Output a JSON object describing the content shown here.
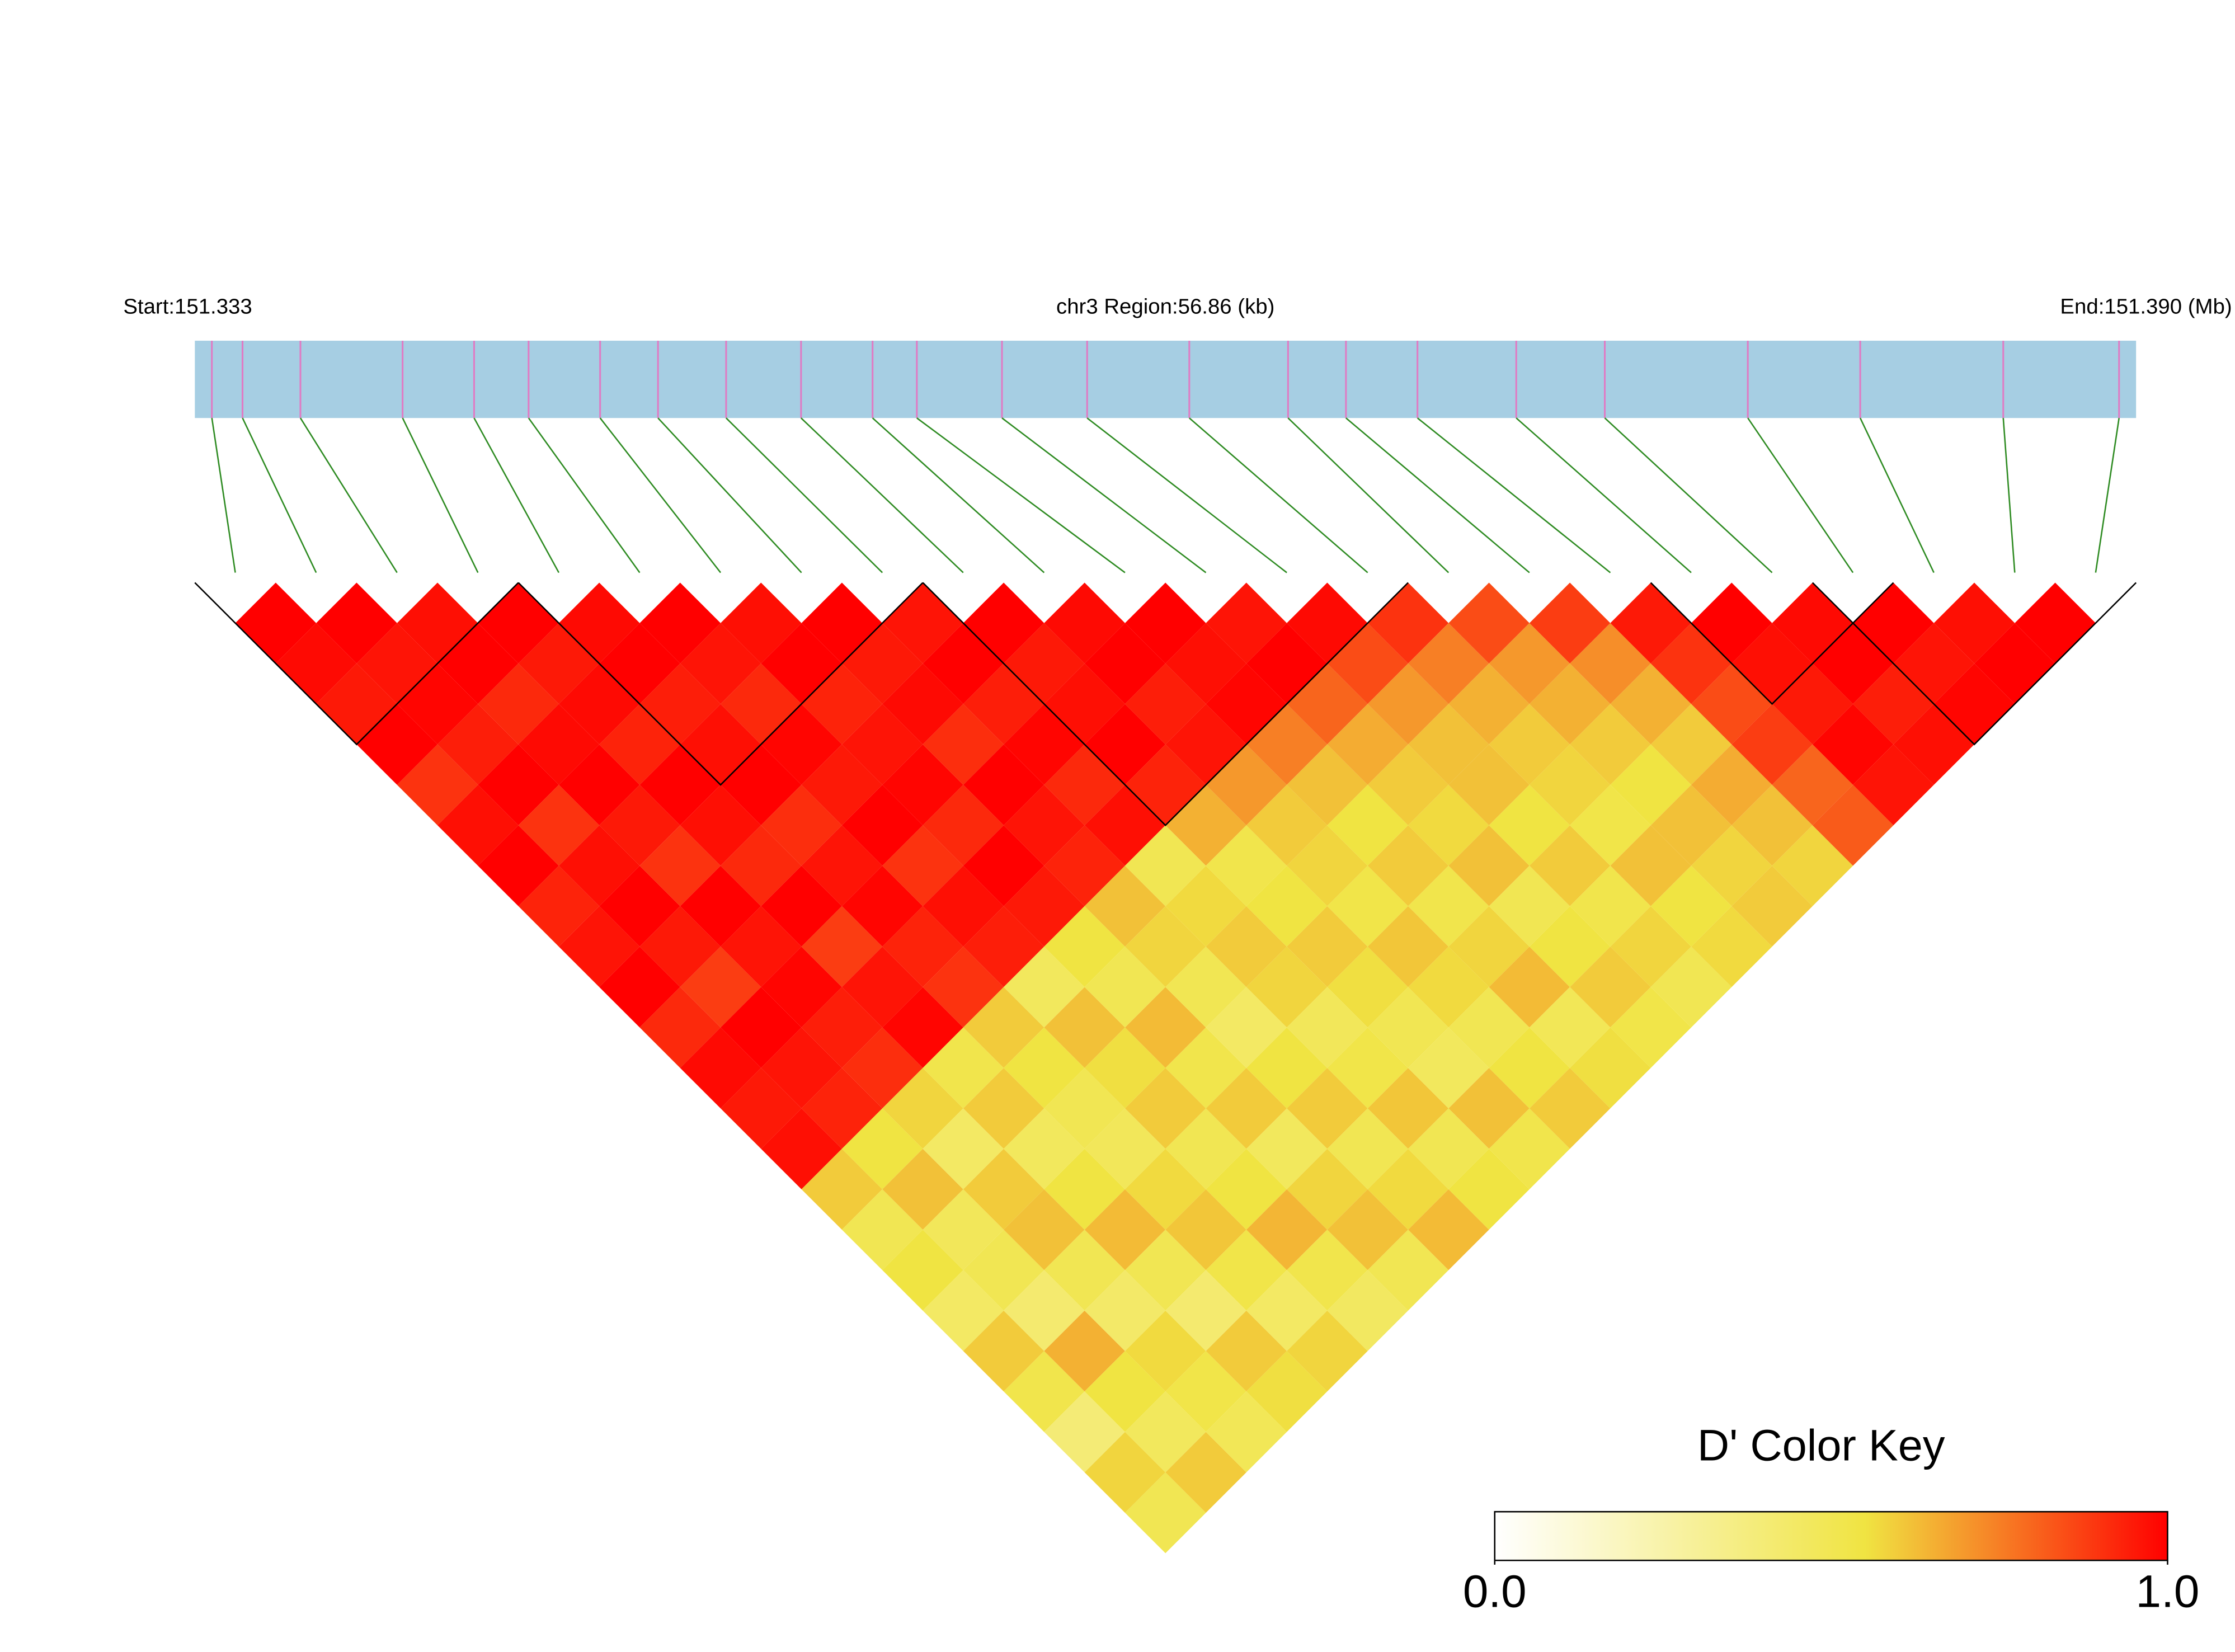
{
  "chart_data": {
    "type": "ld-heatmap",
    "start_label": "Start:151.333",
    "region_label": "chr3 Region:56.86 (kb)",
    "end_label": "End:151.390 (Mb)",
    "xlim": [
      151.333,
      151.39
    ],
    "positions": [
      151.3335,
      151.3344,
      151.3361,
      151.3391,
      151.3412,
      151.3428,
      151.3449,
      151.3466,
      151.3486,
      151.3508,
      151.3529,
      151.3542,
      151.3567,
      151.3592,
      151.3622,
      151.3651,
      151.3668,
      151.3689,
      151.3718,
      151.3744,
      151.3786,
      151.3819,
      151.3861,
      151.3895
    ],
    "matrix": [
      [
        1,
        0.98,
        0.95,
        1,
        0.9,
        0.97,
        1,
        0.93,
        0.96,
        1,
        0.92,
        0.98,
        0.95,
        0.97,
        0.6,
        0.5,
        0.55,
        0.45,
        0.6,
        0.52,
        0.4,
        0.58,
        0.5
      ],
      [
        1,
        0.96,
        0.99,
        0.94,
        1,
        0.9,
        0.97,
        1,
        0.95,
        0.88,
        1,
        0.96,
        0.93,
        0.55,
        0.62,
        0.48,
        0.5,
        0.42,
        0.65,
        0.55,
        0.47,
        0.6
      ],
      [
        0.97,
        1,
        0.92,
        0.98,
        1,
        0.95,
        0.9,
        1,
        0.96,
        0.99,
        0.94,
        0.91,
        0.58,
        0.45,
        0.6,
        0.62,
        0.5,
        0.44,
        0.57,
        0.53,
        0.49
      ],
      [
        1,
        0.95,
        0.98,
        0.93,
        1,
        0.97,
        0.92,
        1,
        0.88,
        0.96,
        0.99,
        0.52,
        0.6,
        0.47,
        0.55,
        0.63,
        0.5,
        0.42,
        0.6,
        0.56
      ],
      [
        0.98,
        1,
        0.94,
        0.97,
        1,
        0.91,
        0.96,
        0.99,
        0.93,
        0.9,
        0.6,
        0.55,
        0.5,
        0.48,
        0.57,
        0.61,
        0.53,
        0.45,
        0.58
      ],
      [
        1,
        0.96,
        0.92,
        0.99,
        0.95,
        1,
        0.9,
        0.97,
        0.94,
        0.47,
        0.62,
        0.56,
        0.6,
        0.5,
        0.55,
        0.64,
        0.52,
        0.46
      ],
      [
        0.97,
        1,
        0.93,
        0.96,
        0.99,
        0.92,
        1,
        0.95,
        0.55,
        0.5,
        0.63,
        0.52,
        0.6,
        0.47,
        0.58,
        0.62,
        0.5
      ],
      [
        1,
        0.95,
        0.98,
        0.91,
        1,
        0.96,
        0.93,
        0.62,
        0.58,
        0.5,
        0.45,
        0.55,
        0.6,
        0.5,
        0.57,
        0.63
      ],
      [
        0.96,
        1,
        0.94,
        0.99,
        0.92,
        0.97,
        0.5,
        0.57,
        0.6,
        0.58,
        0.48,
        0.53,
        0.61,
        0.5,
        0.55
      ],
      [
        1,
        0.95,
        0.97,
        1,
        0.93,
        0.65,
        0.52,
        0.55,
        0.6,
        0.56,
        0.5,
        0.47,
        0.62,
        0.52
      ],
      [
        0.98,
        1,
        0.94,
        0.96,
        0.7,
        0.6,
        0.58,
        0.53,
        0.61,
        0.57,
        0.5,
        0.55,
        0.6
      ],
      [
        1,
        0.97,
        0.99,
        0.75,
        0.62,
        0.55,
        0.6,
        0.52,
        0.58,
        0.63,
        0.49,
        0.56
      ],
      [
        0.96,
        1,
        0.8,
        0.66,
        0.6,
        0.57,
        0.62,
        0.5,
        0.55,
        0.6,
        0.53
      ],
      [
        0.98,
        0.85,
        0.7,
        0.62,
        0.62,
        0.55,
        0.6,
        0.52,
        0.58,
        0.5
      ],
      [
        0.9,
        0.75,
        0.65,
        0.6,
        0.58,
        0.53,
        0.62,
        0.55,
        0.57
      ],
      [
        0.85,
        0.7,
        0.65,
        0.6,
        0.55,
        0.62,
        0.58,
        0.6
      ],
      [
        0.88,
        0.72,
        0.65,
        0.6,
        0.66,
        0.62,
        0.58
      ],
      [
        0.95,
        0.9,
        0.85,
        0.88,
        0.8,
        0.82
      ],
      [
        1,
        0.97,
        0.95,
        0.99,
        0.96
      ],
      [
        0.98,
        1,
        0.94,
        0.97
      ],
      [
        1,
        0.96,
        0.99
      ],
      [
        0.97,
        1
      ],
      [
        1
      ]
    ],
    "blocks": [
      [
        0,
        3
      ],
      [
        4,
        8
      ],
      [
        9,
        14
      ],
      [
        18,
        20
      ],
      [
        20,
        23
      ]
    ],
    "colorscale": {
      "stops": [
        0,
        0.55,
        1
      ],
      "colors": [
        "#ffffff",
        "#f0e442",
        "#ff0000"
      ]
    },
    "bar_color": "#a6cee3",
    "tick_color": "#e07bc4",
    "connector_color": "#2e8b22",
    "legend_title": "D' Color Key",
    "legend_ticks": [
      {
        "value": 0,
        "label": "0.0"
      },
      {
        "value": 1,
        "label": "1.0"
      }
    ]
  }
}
